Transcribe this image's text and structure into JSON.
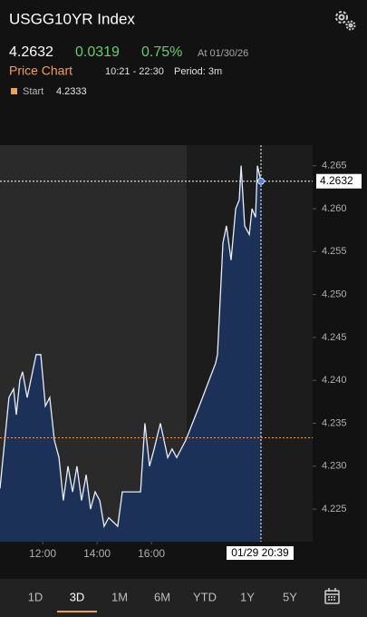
{
  "header": {
    "title": "USGG10YR Index",
    "last": "4.2632",
    "change": "0.0319",
    "change_pct": "0.75%",
    "as_of": "At 01/30/26",
    "chart_label": "Price Chart",
    "time_range": "10:21 - 22:30",
    "period": "Period: 3m",
    "legend_name": "Start"
  },
  "chart_data": {
    "type": "area",
    "x": [
      10.43,
      10.76,
      10.93,
      11.03,
      11.16,
      11.26,
      11.43,
      11.76,
      11.93,
      12.1,
      12.26,
      12.43,
      12.6,
      12.76,
      12.93,
      13.1,
      13.26,
      13.43,
      13.6,
      13.76,
      13.93,
      14.1,
      14.26,
      14.43,
      14.76,
      14.93,
      15.6,
      15.76,
      15.93,
      16.1,
      16.33,
      16.6,
      16.76,
      16.93,
      17.26,
      17.76,
      18.36,
      18.43,
      18.63,
      18.76,
      18.93,
      19.1,
      19.23,
      19.3,
      19.43,
      19.6,
      19.7,
      19.83,
      19.9,
      20.03
    ],
    "values": [
      4.2274,
      4.238,
      4.239,
      4.236,
      4.24,
      4.241,
      4.238,
      4.243,
      4.243,
      4.237,
      4.238,
      4.233,
      4.231,
      4.226,
      4.23,
      4.227,
      4.23,
      4.226,
      4.229,
      4.225,
      4.227,
      4.226,
      4.223,
      4.224,
      4.223,
      4.227,
      4.227,
      4.235,
      4.23,
      4.232,
      4.235,
      4.231,
      4.232,
      4.231,
      4.233,
      4.237,
      4.242,
      4.243,
      4.256,
      4.258,
      4.254,
      4.26,
      4.261,
      4.265,
      4.258,
      4.257,
      4.26,
      4.259,
      4.265,
      4.2632
    ],
    "color": "#e8eef8",
    "fill": "#1b3157",
    "start": 4.2333,
    "start_color": "#f0a050",
    "crosshair_label": "01/29 20:39",
    "xlim": [
      10.43,
      21.93
    ],
    "xticks": [
      {
        "value": 12,
        "label": "12:00"
      },
      {
        "value": 14,
        "label": "14:00"
      },
      {
        "value": 16,
        "label": "16:00"
      }
    ],
    "ylim": [
      4.2212,
      4.2674
    ],
    "yticks": [
      {
        "value": 4.225,
        "label": "4.225"
      },
      {
        "value": 4.23,
        "label": "4.230"
      },
      {
        "value": 4.235,
        "label": "4.235"
      },
      {
        "value": 4.24,
        "label": "4.240"
      },
      {
        "value": 4.245,
        "label": "4.245"
      },
      {
        "value": 4.25,
        "label": "4.250"
      },
      {
        "value": 4.255,
        "label": "4.255"
      },
      {
        "value": 4.26,
        "label": "4.260"
      },
      {
        "value": 4.265,
        "label": "4.265"
      }
    ]
  },
  "tabs": [
    "1D",
    "3D",
    "1M",
    "6M",
    "YTD",
    "1Y",
    "5Y"
  ],
  "selected_tab": "3D"
}
